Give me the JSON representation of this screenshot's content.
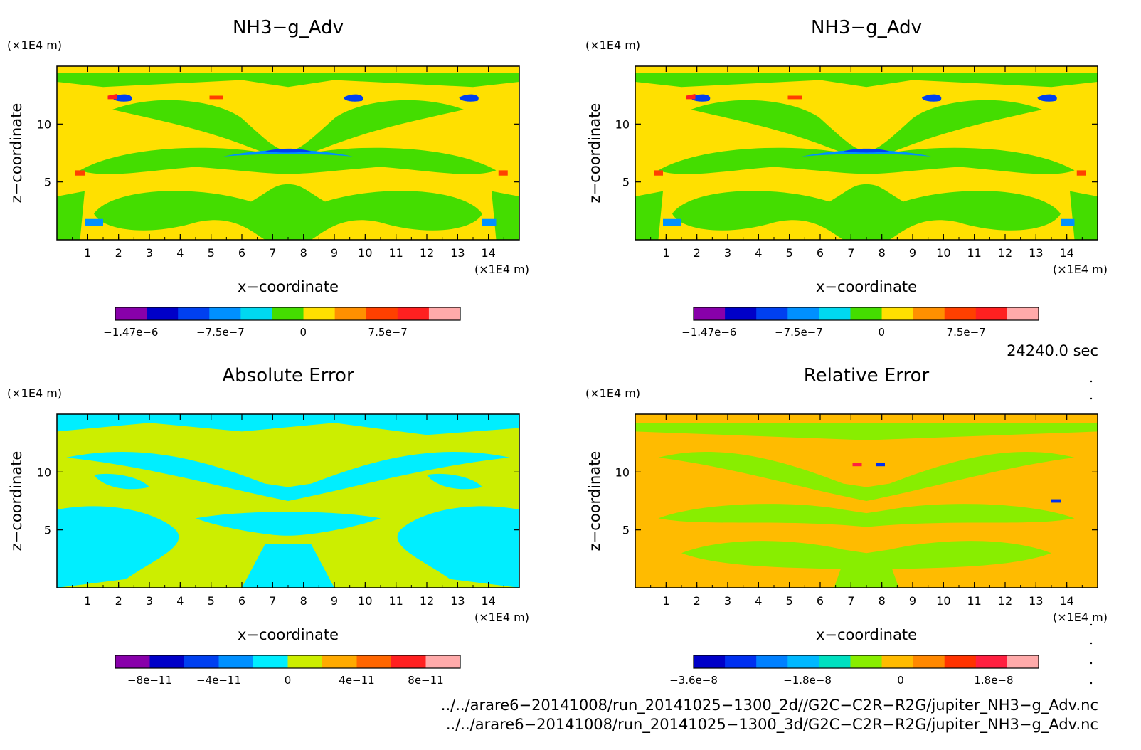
{
  "panels": [
    {
      "title": "NH3−g_Adv",
      "ylabel": "z−coordinate",
      "xlabel": "x−coordinate",
      "yunit": "(×1E4 m)",
      "xunit": "(×1E4 m)",
      "background_color": "#ffe000",
      "colorbar": {
        "colors": [
          "#8800aa",
          "#0000c8",
          "#0040f0",
          "#0090ff",
          "#00d8f0",
          "#44dd00",
          "#ffe000",
          "#ff9000",
          "#ff4000",
          "#ff2020",
          "#ffaaaa"
        ],
        "labels": [
          "−1.47e−6",
          "−7.5e−7",
          "0",
          "7.5e−7"
        ],
        "label_positions": [
          0.045,
          0.305,
          0.545,
          0.79
        ]
      }
    },
    {
      "title": "NH3−g_Adv",
      "ylabel": "z−coordinate",
      "xlabel": "x−coordinate",
      "yunit": "(×1E4 m)",
      "xunit": "(×1E4 m)",
      "background_color": "#ffe000",
      "colorbar": {
        "colors": [
          "#8800aa",
          "#0000c8",
          "#0040f0",
          "#0090ff",
          "#00d8f0",
          "#44dd00",
          "#ffe000",
          "#ff9000",
          "#ff4000",
          "#ff2020",
          "#ffaaaa"
        ],
        "labels": [
          "−1.47e−6",
          "−7.5e−7",
          "0",
          "7.5e−7"
        ],
        "label_positions": [
          0.045,
          0.305,
          0.545,
          0.79
        ]
      }
    },
    {
      "title": "Absolute Error",
      "ylabel": "z−coordinate",
      "xlabel": "x−coordinate",
      "yunit": "(×1E4 m)",
      "xunit": "(×1E4 m)",
      "background_color": "#ccee00",
      "colorbar": {
        "colors": [
          "#8800aa",
          "#0000c8",
          "#0040f0",
          "#0090ff",
          "#00eeff",
          "#ccee00",
          "#ffaa00",
          "#ff6600",
          "#ff2020",
          "#ffaaaa"
        ],
        "labels": [
          "−8e−11",
          "−4e−11",
          "0",
          "4e−11",
          "8e−11"
        ],
        "label_positions": [
          0.1,
          0.3,
          0.5,
          0.7,
          0.9
        ]
      }
    },
    {
      "title": "Relative Error",
      "ylabel": "z−coordinate",
      "xlabel": "x−coordinate",
      "yunit": "(×1E4 m)",
      "xunit": "(×1E4 m)",
      "background_color": "#ffbb00",
      "colorbar": {
        "colors": [
          "#0000c8",
          "#0030f0",
          "#0080ff",
          "#00b8ff",
          "#00e0c0",
          "#88ee00",
          "#ffbb00",
          "#ff8800",
          "#ff3300",
          "#ff2040",
          "#ffaaaa"
        ],
        "labels": [
          "−3.6e−8",
          "−1.8e−8",
          "0",
          "1.8e−8"
        ],
        "label_positions": [
          0.0,
          0.33,
          0.6,
          0.87
        ]
      }
    }
  ],
  "chart_data": [
    {
      "type": "heatmap",
      "title": "NH3−g_Adv",
      "xlabel": "x−coordinate",
      "ylabel": "z−coordinate",
      "xlim": [
        0,
        15
      ],
      "ylim": [
        0,
        15
      ],
      "xticks": [
        "1",
        "2",
        "3",
        "4",
        "5",
        "6",
        "7",
        "8",
        "9",
        "10",
        "11",
        "12",
        "13",
        "14"
      ],
      "yticks": [
        "5",
        "10"
      ],
      "colorbar_labels": [
        "−1.47e−6",
        "−7.5e−7",
        "0",
        "7.5e−7"
      ]
    },
    {
      "type": "heatmap",
      "title": "NH3−g_Adv",
      "xlabel": "x−coordinate",
      "ylabel": "z−coordinate",
      "xlim": [
        0,
        15
      ],
      "ylim": [
        0,
        15
      ],
      "xticks": [
        "1",
        "2",
        "3",
        "4",
        "5",
        "6",
        "7",
        "8",
        "9",
        "10",
        "11",
        "12",
        "13",
        "14"
      ],
      "yticks": [
        "5",
        "10"
      ],
      "colorbar_labels": [
        "−1.47e−6",
        "−7.5e−7",
        "0",
        "7.5e−7"
      ]
    },
    {
      "type": "heatmap",
      "title": "Absolute Error",
      "xlabel": "x−coordinate",
      "ylabel": "z−coordinate",
      "xlim": [
        0,
        15
      ],
      "ylim": [
        0,
        15
      ],
      "xticks": [
        "1",
        "2",
        "3",
        "4",
        "5",
        "6",
        "7",
        "8",
        "9",
        "10",
        "11",
        "12",
        "13",
        "14"
      ],
      "yticks": [
        "5",
        "10"
      ],
      "colorbar_labels": [
        "−8e−11",
        "−4e−11",
        "0",
        "4e−11",
        "8e−11"
      ]
    },
    {
      "type": "heatmap",
      "title": "Relative Error",
      "xlabel": "x−coordinate",
      "ylabel": "z−coordinate",
      "xlim": [
        0,
        15
      ],
      "ylim": [
        0,
        15
      ],
      "xticks": [
        "1",
        "2",
        "3",
        "4",
        "5",
        "6",
        "7",
        "8",
        "9",
        "10",
        "11",
        "12",
        "13",
        "14"
      ],
      "yticks": [
        "5",
        "10"
      ],
      "colorbar_labels": [
        "−3.6e−8",
        "−1.8e−8",
        "0",
        "1.8e−8"
      ]
    }
  ],
  "time_label": "24240.0 sec",
  "footer_lines": [
    "../../arare6−20141008/run_20141025−1300_2d//G2C−C2R−R2G/jupiter_NH3−g_Adv.nc",
    "../../arare6−20141008/run_20141025−1300_3d/G2C−C2R−R2G/jupiter_NH3−g_Adv.nc"
  ]
}
